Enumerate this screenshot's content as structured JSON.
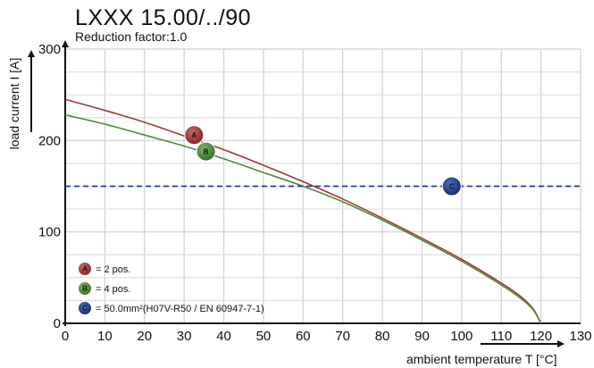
{
  "chart_data": {
    "type": "line",
    "title": "LXXX 15.00/../90",
    "subtitle": "Reduction factor:1.0",
    "xlabel": "ambient temperature T [°C]",
    "ylabel": "load current I [A]",
    "xlim": [
      0,
      130
    ],
    "ylim": [
      0,
      300
    ],
    "xticks": [
      0,
      10,
      20,
      30,
      40,
      50,
      60,
      70,
      80,
      90,
      100,
      110,
      120,
      130
    ],
    "yticks": [
      0,
      100,
      200,
      300
    ],
    "grid": true,
    "legend_position": "bottom-left",
    "series": [
      {
        "name": "= 2 pos.",
        "marker": "A",
        "color": "#9b3a3c",
        "x": [
          0,
          10,
          20,
          30,
          40,
          50,
          60,
          70,
          80,
          90,
          100,
          110,
          115,
          118,
          120
        ],
        "y": [
          245,
          233,
          220,
          205,
          190,
          173,
          155,
          136,
          115,
          93,
          70,
          44,
          29,
          16,
          0
        ],
        "marker_at": [
          32.5,
          206
        ]
      },
      {
        "name": "= 4 pos.",
        "marker": "B",
        "color": "#4f8a3c",
        "x": [
          0,
          10,
          20,
          30,
          40,
          50,
          60,
          70,
          80,
          90,
          100,
          110,
          115,
          118,
          120
        ],
        "y": [
          228,
          218,
          206,
          194,
          180,
          165,
          150,
          133,
          113,
          91,
          68,
          42,
          27,
          15,
          0
        ],
        "marker_at": [
          35.5,
          188
        ]
      },
      {
        "name": "= 50.0mm²(H07V-R50 / EN 60947-7-1)",
        "marker": "C",
        "color": "#1f3f8f",
        "x": [
          0,
          130
        ],
        "y": [
          150,
          150
        ],
        "style": "dashed",
        "marker_at": [
          97.5,
          150
        ]
      }
    ]
  }
}
